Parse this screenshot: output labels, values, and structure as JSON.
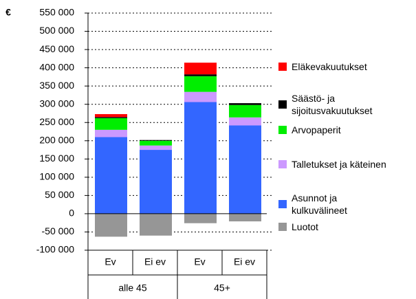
{
  "chart_data": {
    "type": "stacked_bar",
    "y_unit": "€",
    "categories": [
      "Ev",
      "Ei ev",
      "Ev",
      "Ei ev"
    ],
    "groups": [
      "alle 45",
      "45+"
    ],
    "series": [
      {
        "name": "Asunnot ja kulkuvälineet",
        "color": "#3366ff",
        "values": [
          210000,
          175000,
          306000,
          242000
        ]
      },
      {
        "name": "Talletukset ja käteinen",
        "color": "#cc99ff",
        "values": [
          20000,
          12000,
          28000,
          22000
        ]
      },
      {
        "name": "Arvopaperit",
        "color": "#00ee00",
        "values": [
          32000,
          13000,
          43000,
          34000
        ]
      },
      {
        "name": "Säästö- ja sijoitusvakuutukset",
        "color": "#000000",
        "values": [
          3000,
          2000,
          5000,
          5000
        ]
      },
      {
        "name": "Eläkevakuutukset",
        "color": "#ff0000",
        "values": [
          8000,
          0,
          32000,
          0
        ]
      },
      {
        "name": "Luotot",
        "color": "#969696",
        "values": [
          -63000,
          -60000,
          -26000,
          -21000
        ]
      }
    ],
    "ylim": [
      -100000,
      550000
    ],
    "yticks": [
      {
        "value": -100000,
        "label": "-100 000"
      },
      {
        "value": -50000,
        "label": "-50 000"
      },
      0,
      {
        "value": 50000,
        "label": "50 000"
      },
      {
        "value": 100000,
        "label": "100 000"
      },
      {
        "value": 150000,
        "label": "150 000"
      },
      {
        "value": 200000,
        "label": "200 000"
      },
      {
        "value": 250000,
        "label": "250 000"
      },
      {
        "value": 300000,
        "label": "300 000"
      },
      {
        "value": 350000,
        "label": "350 000"
      },
      {
        "value": 400000,
        "label": "400 000"
      },
      {
        "value": 450000,
        "label": "450 000"
      },
      {
        "value": 500000,
        "label": "500 000"
      },
      {
        "value": 550000,
        "label": "550 000"
      }
    ],
    "grid": true
  }
}
